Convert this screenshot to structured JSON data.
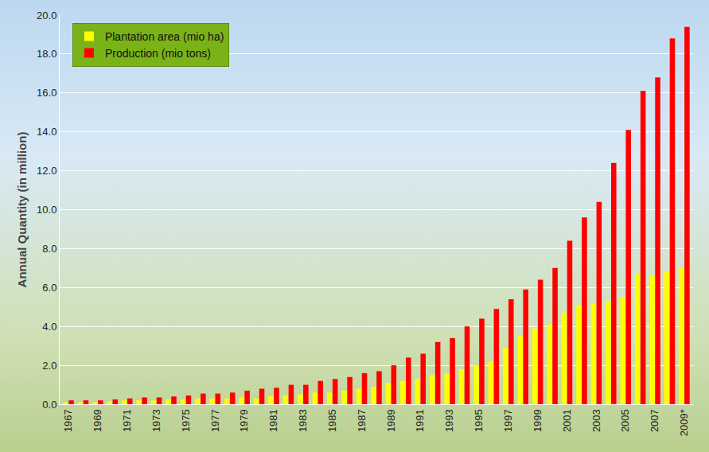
{
  "chart_data": {
    "type": "bar",
    "y_label": "Annual Quantity (in million)",
    "categories": [
      "1967",
      null,
      "1969",
      null,
      "1971",
      null,
      "1973",
      null,
      "1975",
      null,
      "1977",
      null,
      "1979",
      null,
      "1981",
      null,
      "1983",
      null,
      "1985",
      null,
      "1987",
      null,
      "1989",
      null,
      "1991",
      null,
      "1993",
      null,
      "1995",
      null,
      "1997",
      null,
      "1999",
      null,
      "2001",
      null,
      "2003",
      null,
      "2005",
      null,
      "2007",
      null,
      "2009*"
    ],
    "series": [
      {
        "name": "Plantation area (mio ha)",
        "color": "#ffff00",
        "values": [
          0.1,
          0.1,
          0.1,
          0.15,
          0.2,
          0.2,
          0.2,
          0.25,
          0.25,
          0.3,
          0.3,
          0.3,
          0.35,
          0.3,
          0.4,
          0.45,
          0.5,
          0.6,
          0.6,
          0.7,
          0.8,
          0.9,
          1.1,
          1.2,
          1.3,
          1.5,
          1.6,
          1.8,
          2.0,
          2.2,
          2.9,
          3.5,
          3.9,
          4.1,
          4.7,
          5.1,
          5.2,
          5.3,
          5.5,
          6.7,
          6.6,
          6.8,
          7.0
        ]
      },
      {
        "name": "Production (mio tons)",
        "color": "#ff0000",
        "values": [
          0.2,
          0.2,
          0.2,
          0.25,
          0.3,
          0.35,
          0.35,
          0.4,
          0.45,
          0.55,
          0.55,
          0.6,
          0.7,
          0.8,
          0.85,
          1.0,
          1.0,
          1.2,
          1.3,
          1.4,
          1.6,
          1.7,
          2.0,
          2.4,
          2.6,
          3.2,
          3.4,
          4.0,
          4.4,
          4.9,
          5.4,
          5.9,
          6.4,
          7.0,
          8.4,
          9.6,
          10.4,
          12.4,
          14.1,
          16.1,
          16.8,
          18.8,
          19.4
        ]
      }
    ],
    "ylim": [
      0,
      20
    ],
    "yticks": [
      {
        "value": 0,
        "label": "0.0"
      },
      {
        "value": 2,
        "label": "2.0"
      },
      {
        "value": 4,
        "label": "4.0"
      },
      {
        "value": 6,
        "label": "6.0"
      },
      {
        "value": 8,
        "label": "8.0"
      },
      {
        "value": 10,
        "label": "10.0"
      },
      {
        "value": 12,
        "label": "12.0"
      },
      {
        "value": 14,
        "label": "14.0"
      },
      {
        "value": 16,
        "label": "16.0"
      },
      {
        "value": 18,
        "label": "18.0"
      },
      {
        "value": 20,
        "label": "20.0"
      }
    ],
    "grid": true,
    "legend": "top-left"
  }
}
